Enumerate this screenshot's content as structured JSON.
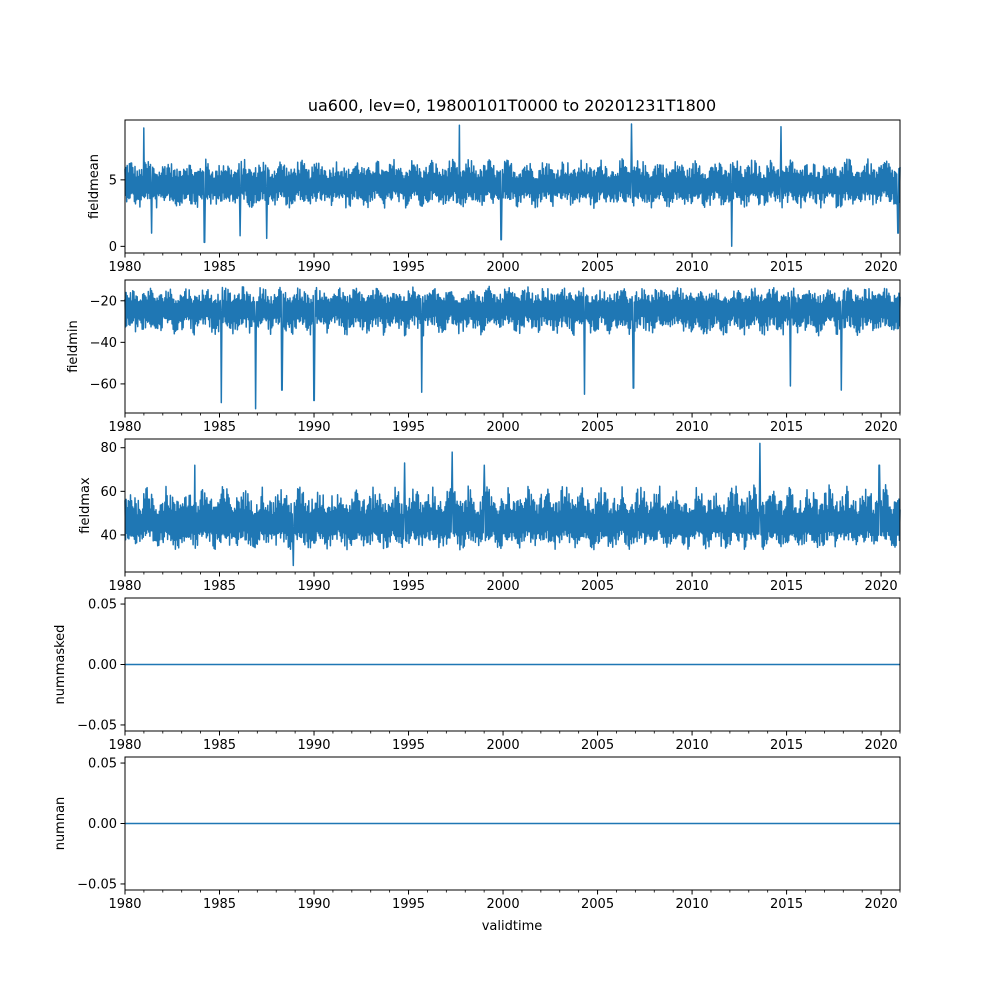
{
  "chart_data": {
    "type": "line",
    "title": "ua600, lev=0, 19800101T0000 to 20201231T1800",
    "xlabel": "validtime",
    "line_color": "#1f77b4",
    "x_range": [
      1980,
      2021
    ],
    "x_ticks": [
      1980,
      1985,
      1990,
      1995,
      2000,
      2005,
      2010,
      2015,
      2020
    ],
    "x_tick_labels": [
      "1980",
      "1985",
      "1990",
      "1995",
      "2000",
      "2005",
      "2010",
      "2015",
      "2020"
    ],
    "panels": [
      {
        "ylabel": "fieldmean",
        "ylim": [
          -0.5,
          9.5
        ],
        "yticks": [
          0,
          5
        ],
        "ytick_labels": [
          "0",
          "5"
        ],
        "pattern": "noisy",
        "center": 4.6,
        "amp_low": 1.8,
        "amp_high": 2.0,
        "extremes": [
          {
            "x": 1981.0,
            "y": 8.9
          },
          {
            "x": 1981.4,
            "y": 1.0
          },
          {
            "x": 1984.2,
            "y": 0.3
          },
          {
            "x": 1986.1,
            "y": 0.8
          },
          {
            "x": 1987.5,
            "y": 0.6
          },
          {
            "x": 1997.7,
            "y": 9.1
          },
          {
            "x": 1999.9,
            "y": 0.5
          },
          {
            "x": 2006.8,
            "y": 9.2
          },
          {
            "x": 2012.1,
            "y": 0.0
          },
          {
            "x": 2014.7,
            "y": 9.0
          },
          {
            "x": 2020.9,
            "y": 1.0
          }
        ]
      },
      {
        "ylabel": "fieldmin",
        "ylim": [
          -74,
          -10
        ],
        "yticks": [
          -60,
          -40,
          -20
        ],
        "ytick_labels": [
          "−60",
          "−40",
          "−20"
        ],
        "pattern": "noisy",
        "center": -24,
        "amp_low": 13,
        "amp_high": 11,
        "extremes": [
          {
            "x": 1985.1,
            "y": -69
          },
          {
            "x": 1986.9,
            "y": -72
          },
          {
            "x": 1988.3,
            "y": -63
          },
          {
            "x": 1990.0,
            "y": -68
          },
          {
            "x": 1995.7,
            "y": -64
          },
          {
            "x": 2004.3,
            "y": -65
          },
          {
            "x": 2006.9,
            "y": -62
          },
          {
            "x": 2015.2,
            "y": -61
          },
          {
            "x": 2017.9,
            "y": -63
          }
        ]
      },
      {
        "ylabel": "fieldmax",
        "ylim": [
          23,
          84
        ],
        "yticks": [
          40,
          60,
          80
        ],
        "ytick_labels": [
          "40",
          "60",
          "80"
        ],
        "pattern": "noisy",
        "center": 45,
        "amp_low": 12,
        "amp_high": 18,
        "extremes": [
          {
            "x": 1983.7,
            "y": 72
          },
          {
            "x": 1988.9,
            "y": 26
          },
          {
            "x": 1994.8,
            "y": 73
          },
          {
            "x": 1997.3,
            "y": 78
          },
          {
            "x": 1999.0,
            "y": 72
          },
          {
            "x": 2013.6,
            "y": 82
          },
          {
            "x": 2019.9,
            "y": 72
          }
        ]
      },
      {
        "ylabel": "nummasked",
        "ylim": [
          -0.055,
          0.055
        ],
        "yticks": [
          -0.05,
          0.0,
          0.05
        ],
        "ytick_labels": [
          "−0.05",
          "0.00",
          "0.05"
        ],
        "pattern": "constant",
        "value": 0.0
      },
      {
        "ylabel": "numnan",
        "ylim": [
          -0.055,
          0.055
        ],
        "yticks": [
          -0.05,
          0.0,
          0.05
        ],
        "ytick_labels": [
          "−0.05",
          "0.00",
          "0.05"
        ],
        "pattern": "constant",
        "value": 0.0
      }
    ]
  }
}
